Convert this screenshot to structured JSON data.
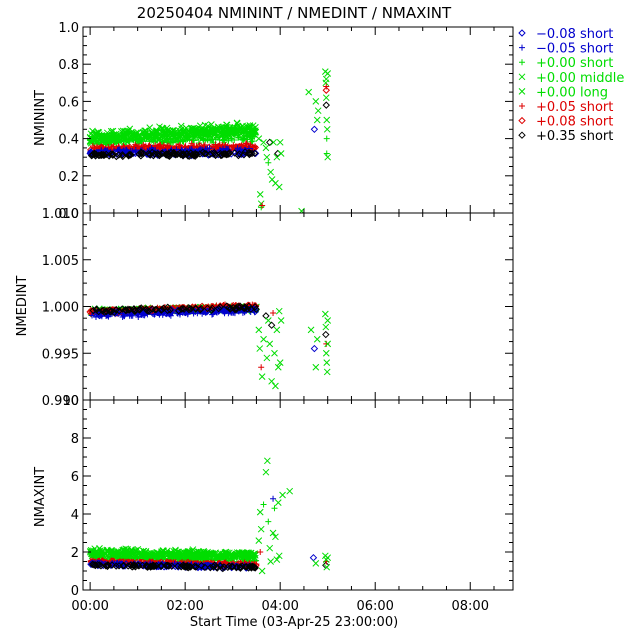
{
  "title": "20250404 NMININT / NMEDINT / NMAXINT",
  "xlabel": "Start Time (03-Apr-25 23:00:00)",
  "legend": [
    {
      "label": "−0.08 short",
      "color": "#0000cc",
      "marker": "diamond"
    },
    {
      "label": "−0.05 short",
      "color": "#0000cc",
      "marker": "plus"
    },
    {
      "label": "+0.00 short",
      "color": "#00dd00",
      "marker": "plus"
    },
    {
      "label": "+0.00 middle",
      "color": "#00dd00",
      "marker": "cross"
    },
    {
      "label": "+0.00 long",
      "color": "#00dd00",
      "marker": "cross"
    },
    {
      "label": "+0.05 short",
      "color": "#dd0000",
      "marker": "plus"
    },
    {
      "label": "+0.08 short",
      "color": "#dd0000",
      "marker": "diamond"
    },
    {
      "label": "+0.35 short",
      "color": "#000000",
      "marker": "diamond"
    }
  ],
  "chart_data": [
    {
      "type": "scatter",
      "ylabel": "NMININT",
      "ylim": [
        0.0,
        1.0
      ],
      "yticks": [
        "0.0",
        "0.2",
        "0.4",
        "0.6",
        "0.8",
        "1.0"
      ],
      "xlim": [
        -0.15,
        8.9
      ],
      "xticks": [
        "00:00",
        "02:00",
        "04:00",
        "06:00",
        "08:00"
      ],
      "bands": [
        {
          "series": 3,
          "x": [
            0.0,
            3.5
          ],
          "y_start": 0.41,
          "y_end": 0.45,
          "spread": 0.045,
          "n": 260
        },
        {
          "series": 4,
          "x": [
            0.0,
            3.5
          ],
          "y_start": 0.4,
          "y_end": 0.44,
          "spread": 0.04,
          "n": 200
        },
        {
          "series": 2,
          "x": [
            0.0,
            3.5
          ],
          "y_start": 0.38,
          "y_end": 0.4,
          "spread": 0.025,
          "n": 140
        },
        {
          "series": 5,
          "x": [
            0.0,
            3.5
          ],
          "y_start": 0.35,
          "y_end": 0.36,
          "spread": 0.02,
          "n": 140
        },
        {
          "series": 6,
          "x": [
            0.0,
            3.5
          ],
          "y_start": 0.34,
          "y_end": 0.35,
          "spread": 0.02,
          "n": 120
        },
        {
          "series": 1,
          "x": [
            0.0,
            3.5
          ],
          "y_start": 0.33,
          "y_end": 0.34,
          "spread": 0.018,
          "n": 100
        },
        {
          "series": 0,
          "x": [
            0.0,
            3.5
          ],
          "y_start": 0.32,
          "y_end": 0.32,
          "spread": 0.015,
          "n": 100
        },
        {
          "series": 7,
          "x": [
            0.0,
            3.5
          ],
          "y_start": 0.31,
          "y_end": 0.32,
          "spread": 0.015,
          "n": 110
        }
      ],
      "points": [
        {
          "series": 3,
          "x": 3.55,
          "y": 0.4
        },
        {
          "series": 3,
          "x": 3.58,
          "y": 0.1
        },
        {
          "series": 3,
          "x": 3.6,
          "y": 0.05
        },
        {
          "series": 2,
          "x": 3.6,
          "y": 0.03
        },
        {
          "series": 5,
          "x": 3.62,
          "y": 0.04
        },
        {
          "series": 3,
          "x": 3.65,
          "y": 0.38
        },
        {
          "series": 3,
          "x": 3.7,
          "y": 0.35
        },
        {
          "series": 3,
          "x": 3.72,
          "y": 0.3
        },
        {
          "series": 2,
          "x": 3.75,
          "y": 0.27
        },
        {
          "series": 7,
          "x": 3.78,
          "y": 0.38
        },
        {
          "series": 3,
          "x": 3.8,
          "y": 0.22
        },
        {
          "series": 3,
          "x": 3.83,
          "y": 0.18
        },
        {
          "series": 3,
          "x": 3.86,
          "y": 0.38
        },
        {
          "series": 3,
          "x": 3.9,
          "y": 0.16
        },
        {
          "series": 3,
          "x": 3.93,
          "y": 0.3
        },
        {
          "series": 7,
          "x": 3.95,
          "y": 0.32
        },
        {
          "series": 3,
          "x": 3.98,
          "y": 0.14
        },
        {
          "series": 3,
          "x": 4.0,
          "y": 0.38
        },
        {
          "series": 3,
          "x": 4.02,
          "y": 0.32
        },
        {
          "series": 4,
          "x": 4.45,
          "y": 0.01
        },
        {
          "series": 3,
          "x": 4.6,
          "y": 0.65
        },
        {
          "series": 0,
          "x": 4.72,
          "y": 0.45
        },
        {
          "series": 3,
          "x": 4.75,
          "y": 0.6
        },
        {
          "series": 3,
          "x": 4.78,
          "y": 0.5
        },
        {
          "series": 4,
          "x": 4.8,
          "y": 0.55
        },
        {
          "series": 3,
          "x": 4.95,
          "y": 0.76
        },
        {
          "series": 4,
          "x": 4.97,
          "y": 0.72
        },
        {
          "series": 3,
          "x": 4.96,
          "y": 0.7
        },
        {
          "series": 3,
          "x": 4.97,
          "y": 0.62
        },
        {
          "series": 7,
          "x": 4.97,
          "y": 0.58
        },
        {
          "series": 6,
          "x": 4.97,
          "y": 0.66
        },
        {
          "series": 5,
          "x": 4.97,
          "y": 0.68
        },
        {
          "series": 3,
          "x": 4.98,
          "y": 0.5
        },
        {
          "series": 2,
          "x": 4.98,
          "y": 0.4
        },
        {
          "series": 2,
          "x": 4.98,
          "y": 0.32
        },
        {
          "series": 3,
          "x": 4.99,
          "y": 0.45
        },
        {
          "series": 3,
          "x": 5.0,
          "y": 0.75
        },
        {
          "series": 3,
          "x": 5.0,
          "y": 0.3
        }
      ]
    },
    {
      "type": "scatter",
      "ylabel": "NMEDINT",
      "ylim": [
        0.99,
        1.01
      ],
      "yticks": [
        "0.990",
        "0.995",
        "1.000",
        "1.005",
        "1.010"
      ],
      "xlim": [
        -0.15,
        8.9
      ],
      "xticks": [
        "00:00",
        "02:00",
        "04:00",
        "06:00",
        "08:00"
      ],
      "bands": [
        {
          "series": 3,
          "x": [
            0.0,
            3.5
          ],
          "y_start": 0.9995,
          "y_end": 0.9998,
          "spread": 0.0003,
          "n": 260
        },
        {
          "series": 4,
          "x": [
            0.0,
            3.5
          ],
          "y_start": 0.9995,
          "y_end": 0.9999,
          "spread": 0.0003,
          "n": 150
        },
        {
          "series": 2,
          "x": [
            0.0,
            3.5
          ],
          "y_start": 0.9994,
          "y_end": 0.9999,
          "spread": 0.0003,
          "n": 100
        },
        {
          "series": 5,
          "x": [
            0.0,
            3.5
          ],
          "y_start": 0.9993,
          "y_end": 1.0001,
          "spread": 0.0004,
          "n": 140
        },
        {
          "series": 6,
          "x": [
            0.0,
            3.5
          ],
          "y_start": 0.9994,
          "y_end": 1.0,
          "spread": 0.0003,
          "n": 100
        },
        {
          "series": 1,
          "x": [
            0.0,
            3.5
          ],
          "y_start": 0.999,
          "y_end": 0.9996,
          "spread": 0.0004,
          "n": 100
        },
        {
          "series": 0,
          "x": [
            0.0,
            3.5
          ],
          "y_start": 0.9992,
          "y_end": 0.9997,
          "spread": 0.0003,
          "n": 80
        },
        {
          "series": 7,
          "x": [
            0.0,
            3.5
          ],
          "y_start": 0.9995,
          "y_end": 0.9999,
          "spread": 0.0003,
          "n": 80
        }
      ],
      "points": [
        {
          "series": 3,
          "x": 3.55,
          "y": 0.9975
        },
        {
          "series": 3,
          "x": 3.57,
          "y": 0.9955
        },
        {
          "series": 5,
          "x": 3.6,
          "y": 0.9935
        },
        {
          "series": 3,
          "x": 3.62,
          "y": 0.9925
        },
        {
          "series": 3,
          "x": 3.65,
          "y": 0.9965
        },
        {
          "series": 7,
          "x": 3.7,
          "y": 0.999
        },
        {
          "series": 3,
          "x": 3.72,
          "y": 0.9945
        },
        {
          "series": 3,
          "x": 3.75,
          "y": 0.9985
        },
        {
          "series": 3,
          "x": 3.78,
          "y": 0.996
        },
        {
          "series": 3,
          "x": 3.82,
          "y": 0.992
        },
        {
          "series": 7,
          "x": 3.82,
          "y": 0.998
        },
        {
          "series": 5,
          "x": 3.85,
          "y": 0.9993
        },
        {
          "series": 3,
          "x": 3.88,
          "y": 0.995
        },
        {
          "series": 3,
          "x": 3.9,
          "y": 0.9915
        },
        {
          "series": 3,
          "x": 3.93,
          "y": 0.9975
        },
        {
          "series": 3,
          "x": 3.96,
          "y": 0.9935
        },
        {
          "series": 3,
          "x": 3.98,
          "y": 0.9995
        },
        {
          "series": 3,
          "x": 4.0,
          "y": 0.994
        },
        {
          "series": 3,
          "x": 4.02,
          "y": 0.9985
        },
        {
          "series": 3,
          "x": 4.65,
          "y": 0.9975
        },
        {
          "series": 0,
          "x": 4.72,
          "y": 0.9955
        },
        {
          "series": 3,
          "x": 4.75,
          "y": 0.9935
        },
        {
          "series": 3,
          "x": 4.78,
          "y": 0.9965
        },
        {
          "series": 3,
          "x": 4.95,
          "y": 0.9992
        },
        {
          "series": 3,
          "x": 4.96,
          "y": 0.9978
        },
        {
          "series": 7,
          "x": 4.96,
          "y": 0.997
        },
        {
          "series": 5,
          "x": 4.97,
          "y": 0.996
        },
        {
          "series": 3,
          "x": 4.97,
          "y": 0.995
        },
        {
          "series": 3,
          "x": 4.98,
          "y": 0.994
        },
        {
          "series": 3,
          "x": 4.99,
          "y": 0.993
        },
        {
          "series": 3,
          "x": 5.0,
          "y": 0.9985
        },
        {
          "series": 3,
          "x": 5.0,
          "y": 0.996
        }
      ]
    },
    {
      "type": "scatter",
      "ylabel": "NMAXINT",
      "ylim": [
        0,
        10
      ],
      "yticks": [
        "0",
        "2",
        "4",
        "6",
        "8",
        "10"
      ],
      "xlim": [
        -0.15,
        8.9
      ],
      "xticks": [
        "00:00",
        "02:00",
        "04:00",
        "06:00",
        "08:00"
      ],
      "bands": [
        {
          "series": 3,
          "x": [
            0.0,
            3.5
          ],
          "y_start": 2.0,
          "y_end": 1.85,
          "spread": 0.25,
          "n": 260
        },
        {
          "series": 4,
          "x": [
            0.0,
            3.5
          ],
          "y_start": 1.85,
          "y_end": 1.7,
          "spread": 0.2,
          "n": 160
        },
        {
          "series": 2,
          "x": [
            0.0,
            3.5
          ],
          "y_start": 1.7,
          "y_end": 1.55,
          "spread": 0.15,
          "n": 120
        },
        {
          "series": 5,
          "x": [
            0.0,
            3.5
          ],
          "y_start": 1.5,
          "y_end": 1.35,
          "spread": 0.12,
          "n": 140
        },
        {
          "series": 6,
          "x": [
            0.0,
            3.5
          ],
          "y_start": 1.45,
          "y_end": 1.3,
          "spread": 0.12,
          "n": 100
        },
        {
          "series": 1,
          "x": [
            0.0,
            3.5
          ],
          "y_start": 1.4,
          "y_end": 1.25,
          "spread": 0.1,
          "n": 90
        },
        {
          "series": 0,
          "x": [
            0.0,
            3.5
          ],
          "y_start": 1.35,
          "y_end": 1.2,
          "spread": 0.1,
          "n": 80
        },
        {
          "series": 7,
          "x": [
            0.0,
            3.5
          ],
          "y_start": 1.3,
          "y_end": 1.2,
          "spread": 0.1,
          "n": 100
        }
      ],
      "points": [
        {
          "series": 3,
          "x": 3.55,
          "y": 2.6
        },
        {
          "series": 3,
          "x": 3.58,
          "y": 4.1
        },
        {
          "series": 5,
          "x": 3.58,
          "y": 2.0
        },
        {
          "series": 3,
          "x": 3.6,
          "y": 3.2
        },
        {
          "series": 3,
          "x": 3.62,
          "y": 1.0
        },
        {
          "series": 2,
          "x": 3.65,
          "y": 4.5
        },
        {
          "series": 3,
          "x": 3.7,
          "y": 6.2
        },
        {
          "series": 3,
          "x": 3.73,
          "y": 6.8
        },
        {
          "series": 2,
          "x": 3.75,
          "y": 3.6
        },
        {
          "series": 3,
          "x": 3.78,
          "y": 2.2
        },
        {
          "series": 3,
          "x": 3.8,
          "y": 1.5
        },
        {
          "series": 3,
          "x": 3.85,
          "y": 3.0
        },
        {
          "series": 1,
          "x": 3.85,
          "y": 4.8
        },
        {
          "series": 2,
          "x": 3.88,
          "y": 4.3
        },
        {
          "series": 3,
          "x": 3.9,
          "y": 2.8
        },
        {
          "series": 3,
          "x": 3.93,
          "y": 1.6
        },
        {
          "series": 3,
          "x": 3.96,
          "y": 4.6
        },
        {
          "series": 3,
          "x": 3.98,
          "y": 1.8
        },
        {
          "series": 3,
          "x": 4.05,
          "y": 5.0
        },
        {
          "series": 3,
          "x": 4.2,
          "y": 5.2
        },
        {
          "series": 0,
          "x": 4.7,
          "y": 1.7
        },
        {
          "series": 3,
          "x": 4.75,
          "y": 1.4
        },
        {
          "series": 3,
          "x": 4.95,
          "y": 1.8
        },
        {
          "series": 7,
          "x": 4.96,
          "y": 1.3
        },
        {
          "series": 5,
          "x": 4.97,
          "y": 1.5
        },
        {
          "series": 3,
          "x": 4.97,
          "y": 1.6
        },
        {
          "series": 3,
          "x": 4.98,
          "y": 1.2
        },
        {
          "series": 3,
          "x": 5.0,
          "y": 1.7
        }
      ]
    }
  ]
}
